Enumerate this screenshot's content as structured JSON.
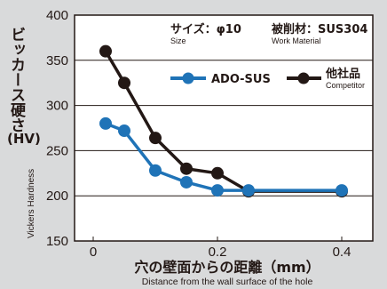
{
  "chart_data": {
    "type": "line",
    "x_ticks": [
      "0",
      "0.2",
      "0.4"
    ],
    "y_ticks": [
      "150",
      "200",
      "250",
      "300",
      "350",
      "400"
    ],
    "xlim": [
      -0.03,
      0.45
    ],
    "ylim": [
      150,
      400
    ],
    "xlabel_jp": "穴の壁面からの距離（mm）",
    "xlabel_en": "Distance from the wall surface of the hole",
    "ylabel_jp": "ビッカース硬さ",
    "ylabel_unit": "(HV)",
    "ylabel_en": "Vickers Hardness",
    "grid": "horizontal",
    "annotations": {
      "size_label": "サイズ：",
      "size_value": "φ10",
      "size_en": "Size",
      "material_label": "被削材：",
      "material_value": "SUS304",
      "material_en": "Work Material"
    },
    "series": [
      {
        "name": "ADO-SUS",
        "color": "#1f73b7",
        "x": [
          0.02,
          0.05,
          0.1,
          0.15,
          0.2,
          0.25,
          0.4
        ],
        "y": [
          280,
          272,
          228,
          215,
          206,
          206,
          206
        ]
      },
      {
        "name": "他社品",
        "name_en": "Competitor",
        "color": "#231815",
        "x": [
          0.02,
          0.05,
          0.1,
          0.15,
          0.2,
          0.25,
          0.4
        ],
        "y": [
          360,
          325,
          264,
          230,
          225,
          205,
          205
        ]
      }
    ]
  }
}
